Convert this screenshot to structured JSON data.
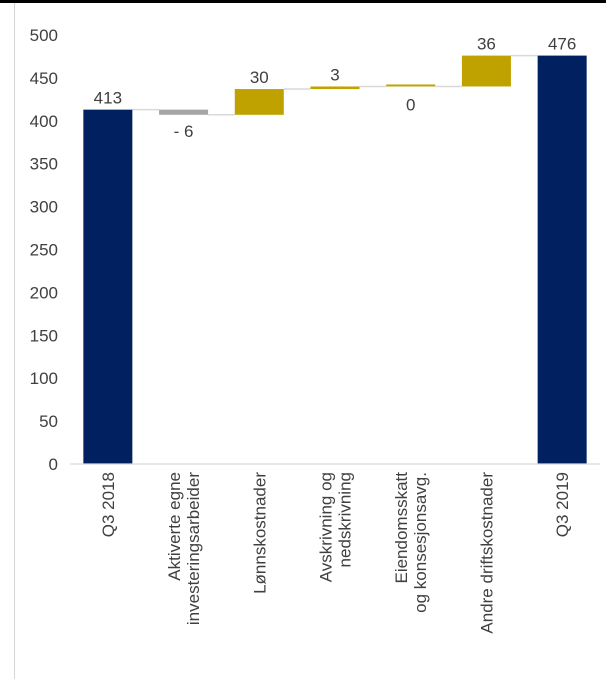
{
  "chart_data": {
    "type": "waterfall",
    "categories": [
      "Q3 2018",
      "Aktiverte egne investeringsarbeider",
      "Lønnskostnader",
      "Avskrivning og nedskrivning",
      "Eiendomsskatt og konsesjonsavg.",
      "Andre driftskostnader",
      "Q3 2019"
    ],
    "category_lines": [
      [
        "Q3 2018"
      ],
      [
        "Aktiverte egne",
        "investeringsarbeider"
      ],
      [
        "Lønnskostnader"
      ],
      [
        "Avskrivning og",
        "nedskrivning"
      ],
      [
        "Eiendomsskatt",
        "og konsesjonsavg."
      ],
      [
        "Andre driftskostnader"
      ],
      [
        "Q3 2019"
      ]
    ],
    "values": [
      413,
      -6,
      30,
      3,
      0,
      36,
      476
    ],
    "kinds": [
      "total",
      "delta",
      "delta",
      "delta",
      "delta",
      "delta",
      "total"
    ],
    "data_labels": [
      "413",
      "- 6",
      "30",
      "3",
      "0",
      "36",
      "476"
    ],
    "ylim": [
      0,
      500
    ],
    "yticks": [
      0,
      50,
      100,
      150,
      200,
      250,
      300,
      350,
      400,
      450,
      500
    ],
    "grid": false,
    "legend": "none",
    "colors": {
      "total": "#002060",
      "increase": "#BFA100",
      "decrease": "#A6A6A6",
      "axis": "#D9D9D9",
      "connector": "#D9D9D9",
      "text": "#404040"
    }
  }
}
